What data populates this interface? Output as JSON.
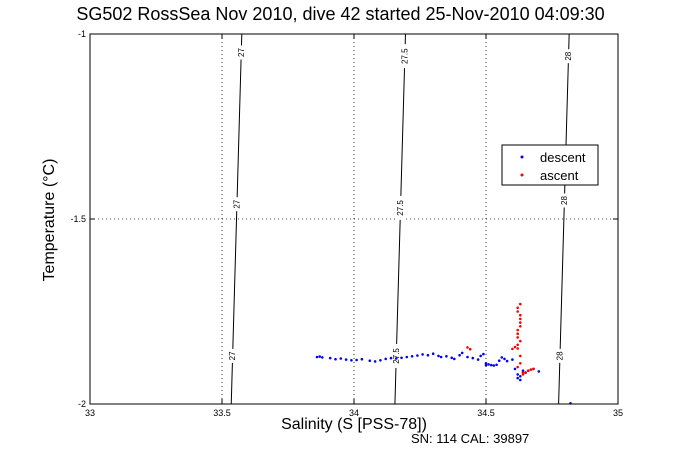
{
  "chart_data": {
    "type": "scatter",
    "title": "SG502 RossSea Nov 2010, dive 42 started 25-Nov-2010 04:09:30",
    "xlabel": "Salinity (S [PSS-78])",
    "ylabel": "Temperature (°C)",
    "xlim": [
      33,
      35
    ],
    "ylim": [
      -2,
      -1
    ],
    "x_ticks": [
      "33",
      "33.5",
      "34",
      "34.5",
      "35"
    ],
    "y_ticks": [
      "-1",
      "-1.5",
      "-2"
    ],
    "grid": true,
    "legend_position": "right",
    "footer": "SN: 114  CAL: 39897",
    "contours": [
      {
        "label": "27",
        "x_top": 33.575,
        "x_bottom": 33.535,
        "label_positions": [
          -1.05,
          -1.46,
          -1.87
        ]
      },
      {
        "label": "27.5",
        "x_top": 34.195,
        "x_bottom": 34.155,
        "label_positions": [
          -1.06,
          -1.47,
          -1.87
        ]
      },
      {
        "label": "28",
        "x_top": 34.815,
        "x_bottom": 34.775,
        "label_positions": [
          -1.06,
          -1.45,
          -1.87
        ]
      }
    ],
    "series": [
      {
        "name": "descent",
        "color": "#0000ff",
        "x": [
          33.86,
          33.87,
          33.88,
          33.91,
          33.93,
          33.95,
          33.97,
          33.99,
          34.01,
          34.03,
          34.06,
          34.08,
          34.1,
          34.12,
          34.14,
          34.16,
          34.18,
          34.2,
          34.22,
          34.24,
          34.26,
          34.28,
          34.3,
          34.32,
          34.33,
          34.35,
          34.37,
          34.38,
          34.4,
          34.41,
          34.43,
          34.45,
          34.47,
          34.48,
          34.49,
          34.5,
          34.5,
          34.51,
          34.52,
          34.53,
          34.54,
          34.55,
          34.56,
          34.57,
          34.58,
          34.6,
          34.61,
          34.62,
          34.62,
          34.63,
          34.63,
          34.64,
          34.64,
          34.65,
          34.66,
          34.68,
          34.7,
          34.82
        ],
        "y": [
          -1.873,
          -1.872,
          -1.874,
          -1.876,
          -1.879,
          -1.877,
          -1.88,
          -1.882,
          -1.881,
          -1.879,
          -1.883,
          -1.885,
          -1.882,
          -1.878,
          -1.876,
          -1.877,
          -1.875,
          -1.873,
          -1.871,
          -1.869,
          -1.866,
          -1.868,
          -1.864,
          -1.87,
          -1.873,
          -1.871,
          -1.875,
          -1.878,
          -1.868,
          -1.862,
          -1.873,
          -1.876,
          -1.88,
          -1.87,
          -1.865,
          -1.89,
          -1.895,
          -1.893,
          -1.895,
          -1.896,
          -1.894,
          -1.883,
          -1.874,
          -1.878,
          -1.884,
          -1.88,
          -1.905,
          -1.92,
          -1.93,
          -1.935,
          -1.925,
          -1.915,
          -1.91,
          -1.915,
          -1.91,
          -1.905,
          -1.912,
          -1.998
        ]
      },
      {
        "name": "ascent",
        "color": "#ff0000",
        "x": [
          34.43,
          34.44,
          34.6,
          34.61,
          34.62,
          34.62,
          34.62,
          34.63,
          34.63,
          34.62,
          34.63,
          34.62,
          34.63,
          34.63,
          34.62,
          34.63,
          34.62,
          34.63,
          34.63,
          34.62,
          34.64,
          34.64,
          34.65,
          34.66,
          34.67,
          34.68
        ],
        "y": [
          -1.847,
          -1.852,
          -1.851,
          -1.846,
          -1.84,
          -1.82,
          -1.8,
          -1.78,
          -1.76,
          -1.74,
          -1.73,
          -1.75,
          -1.77,
          -1.79,
          -1.81,
          -1.83,
          -1.85,
          -1.87,
          -1.89,
          -1.9,
          -1.915,
          -1.92,
          -1.915,
          -1.91,
          -1.907,
          -1.905
        ]
      }
    ]
  }
}
